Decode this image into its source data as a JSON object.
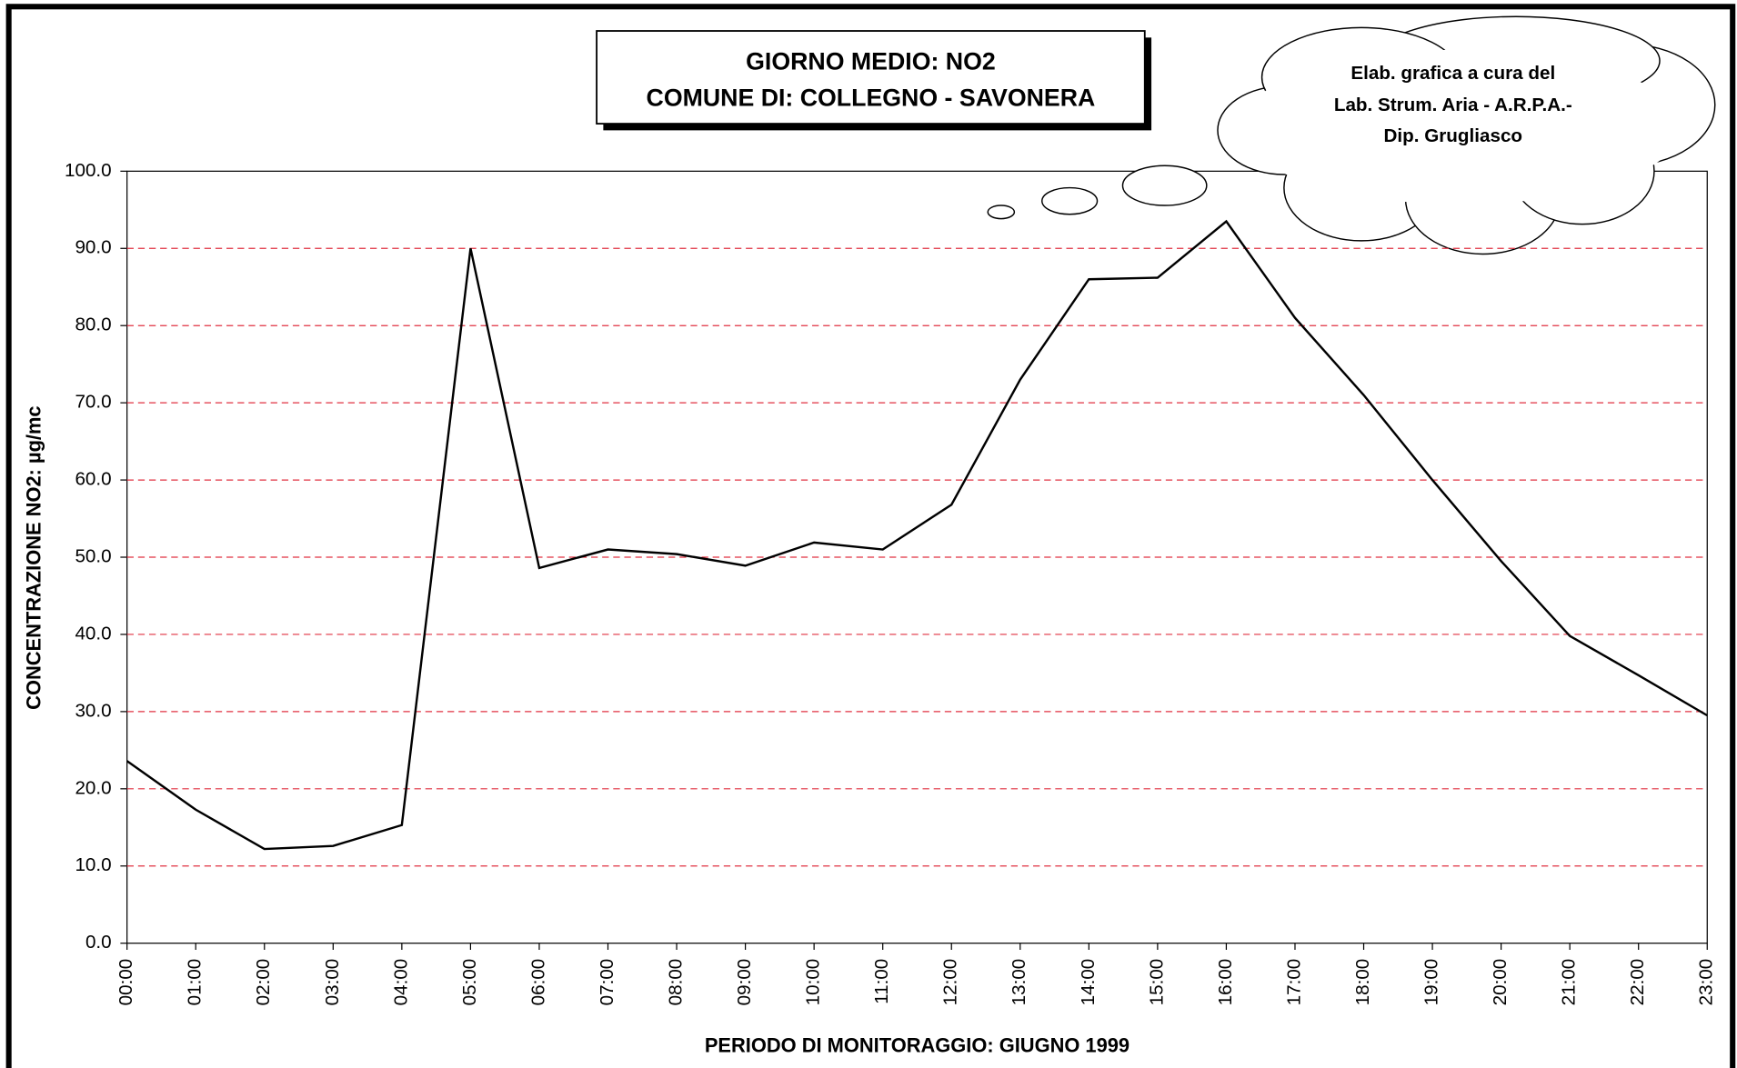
{
  "chart_data": {
    "type": "line",
    "title": [
      "GIORNO MEDIO: NO2",
      "COMUNE DI: COLLEGNO - SAVONERA"
    ],
    "annotation": [
      "Elab. grafica a cura del",
      "Lab. Strum. Aria - A.R.P.A.-",
      "Dip. Grugliasco"
    ],
    "x_label": "PERIODO DI MONITORAGGIO: GIUGNO 1999",
    "y_label": "CONCENTRAZIONE NO2:  µg/mc",
    "categories": [
      "00:00",
      "01:00",
      "02:00",
      "03:00",
      "04:00",
      "05:00",
      "06:00",
      "07:00",
      "08:00",
      "09:00",
      "10:00",
      "11:00",
      "12:00",
      "13:00",
      "14:00",
      "15:00",
      "16:00",
      "17:00",
      "18:00",
      "19:00",
      "20:00",
      "21:00",
      "22:00",
      "23:00"
    ],
    "values": [
      23.6,
      17.3,
      12.2,
      12.6,
      15.3,
      90.0,
      48.6,
      51.0,
      50.4,
      48.9,
      51.9,
      51.0,
      56.8,
      73.0,
      86.0,
      86.2,
      93.5,
      81.0,
      71.0,
      60.0,
      49.5,
      39.8,
      34.7,
      29.5
    ],
    "color": "#000000",
    "ylim": [
      0,
      100
    ],
    "yticks": [
      {
        "value": 0,
        "label": "0.0"
      },
      {
        "value": 10,
        "label": "10.0"
      },
      {
        "value": 20,
        "label": "20.0"
      },
      {
        "value": 30,
        "label": "30.0"
      },
      {
        "value": 40,
        "label": "40.0"
      },
      {
        "value": 50,
        "label": "50.0"
      },
      {
        "value": 60,
        "label": "60.0"
      },
      {
        "value": 70,
        "label": "70.0"
      },
      {
        "value": 80,
        "label": "80.0"
      },
      {
        "value": 90,
        "label": "90.0"
      },
      {
        "value": 100,
        "label": "100.0"
      }
    ],
    "grid": true,
    "grid_color": "#e03040"
  }
}
